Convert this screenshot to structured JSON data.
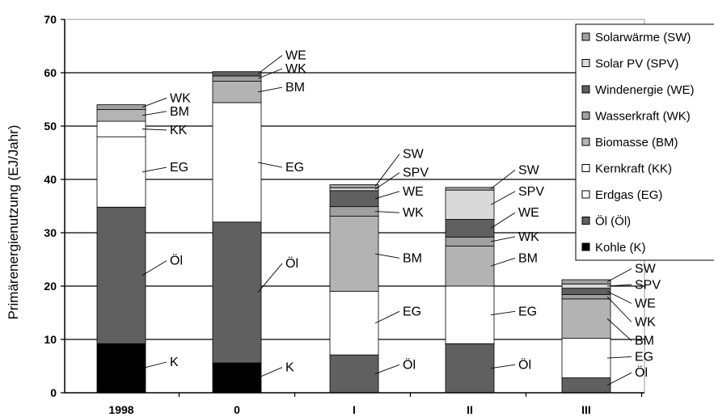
{
  "chart_data": {
    "type": "bar",
    "stacked": true,
    "ylabel": "Primärenergienutzung (EJ/Jahr)",
    "ylim": [
      0,
      70
    ],
    "yticks": [
      0,
      10,
      20,
      30,
      40,
      50,
      60,
      70
    ],
    "grid": true,
    "legend_position": "top-right",
    "categories": [
      "1998",
      "0",
      "I",
      "II",
      "III"
    ],
    "series": [
      {
        "key": "K",
        "name": "Kohle (K)",
        "color": "#000000",
        "values": [
          9.2,
          5.6,
          0,
          0,
          0
        ]
      },
      {
        "key": "Öl",
        "name": "Öl (Öl)",
        "color": "#606060",
        "values": [
          25.6,
          26.4,
          7.1,
          9.2,
          2.8
        ]
      },
      {
        "key": "EG",
        "name": "Erdgas (EG)",
        "color": "#ffffff",
        "values": [
          13.2,
          22.4,
          11.9,
          10.8,
          7.4
        ]
      },
      {
        "key": "KK",
        "name": "Kernkraft (KK)",
        "color": "#ffffff",
        "values": [
          2.9,
          0,
          0,
          0,
          0
        ]
      },
      {
        "key": "BM",
        "name": "Biomasse (BM)",
        "color": "#b3b3b3",
        "values": [
          2.2,
          4.0,
          14.1,
          7.5,
          7.4
        ]
      },
      {
        "key": "WK",
        "name": "Wasserkraft (WK)",
        "color": "#a0a0a0",
        "values": [
          0.9,
          1.0,
          1.8,
          1.7,
          0.8
        ]
      },
      {
        "key": "WE",
        "name": "Windenergie (WE)",
        "color": "#606060",
        "values": [
          0,
          0.8,
          3.0,
          3.3,
          1.2
        ]
      },
      {
        "key": "SPV",
        "name": "Solar PV (SPV)",
        "color": "#d9d9d9",
        "values": [
          0,
          0,
          0.5,
          5.5,
          0.8
        ]
      },
      {
        "key": "SW",
        "name": "Solarwärme (SW)",
        "color": "#a0a0a0",
        "values": [
          0,
          0,
          0.6,
          0.5,
          0.8
        ]
      }
    ],
    "legend_order": [
      "SW",
      "SPV",
      "WE",
      "WK",
      "BM",
      "KK",
      "EG",
      "Öl",
      "K"
    ],
    "annotations": [
      {
        "bar": 0,
        "label": "K",
        "value": 5
      },
      {
        "bar": 0,
        "label": "Öl",
        "value": 24
      },
      {
        "bar": 0,
        "label": "EG",
        "value": 41.5
      },
      {
        "bar": 0,
        "label": "KK",
        "value": 48.5
      },
      {
        "bar": 0,
        "label": "BM",
        "value": 52
      },
      {
        "bar": 0,
        "label": "WK",
        "value": 54.5
      },
      {
        "bar": 1,
        "label": "K",
        "value": 4
      },
      {
        "bar": 1,
        "label": "Öl",
        "value": 23.5
      },
      {
        "bar": 1,
        "label": "EG",
        "value": 41.5
      },
      {
        "bar": 1,
        "label": "BM",
        "value": 56.5
      },
      {
        "bar": 1,
        "label": "WK",
        "value": 60
      },
      {
        "bar": 1,
        "label": "WE",
        "value": 62.5
      },
      {
        "bar": 2,
        "label": "Öl",
        "value": 4.5
      },
      {
        "bar": 2,
        "label": "EG",
        "value": 14.5
      },
      {
        "bar": 2,
        "label": "BM",
        "value": 24.5
      },
      {
        "bar": 2,
        "label": "WK",
        "value": 33
      },
      {
        "bar": 2,
        "label": "WE",
        "value": 37
      },
      {
        "bar": 2,
        "label": "SPV",
        "value": 40.5
      },
      {
        "bar": 2,
        "label": "SW",
        "value": 44
      },
      {
        "bar": 3,
        "label": "Öl",
        "value": 4.5
      },
      {
        "bar": 3,
        "label": "EG",
        "value": 14.5
      },
      {
        "bar": 3,
        "label": "BM",
        "value": 24.5
      },
      {
        "bar": 3,
        "label": "WK",
        "value": 28.5
      },
      {
        "bar": 3,
        "label": "WE",
        "value": 33
      },
      {
        "bar": 3,
        "label": "SPV",
        "value": 37
      },
      {
        "bar": 3,
        "label": "SW",
        "value": 41
      },
      {
        "bar": 4,
        "label": "Öl",
        "value": 3
      },
      {
        "bar": 4,
        "label": "EG",
        "value": 6
      },
      {
        "bar": 4,
        "label": "BM",
        "value": 9
      },
      {
        "bar": 4,
        "label": "WK",
        "value": 12.5
      },
      {
        "bar": 4,
        "label": "WE",
        "value": 16
      },
      {
        "bar": 4,
        "label": "SPV",
        "value": 19.5
      },
      {
        "bar": 4,
        "label": "SW",
        "value": 22.5
      }
    ]
  }
}
